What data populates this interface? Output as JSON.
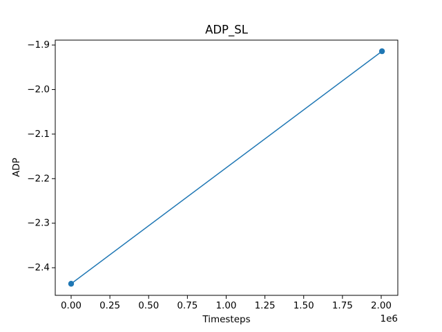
{
  "chart_data": {
    "type": "line",
    "title": "ADP_SL",
    "x_label": "Timesteps",
    "y_label": "ADP",
    "x_offset_label": "1e6",
    "x": [
      0,
      2005000
    ],
    "values": [
      -2.436,
      -1.914
    ],
    "color": "#1f77b4",
    "markers": true,
    "xlim": [
      -102400,
      2107000
    ],
    "ylim": [
      -2.462,
      -1.889
    ],
    "xticks": [
      {
        "value": 0,
        "label": "0.00"
      },
      {
        "value": 250000,
        "label": "0.25"
      },
      {
        "value": 500000,
        "label": "0.50"
      },
      {
        "value": 750000,
        "label": "0.75"
      },
      {
        "value": 1000000,
        "label": "1.00"
      },
      {
        "value": 1250000,
        "label": "1.25"
      },
      {
        "value": 1500000,
        "label": "1.50"
      },
      {
        "value": 1750000,
        "label": "1.75"
      },
      {
        "value": 2000000,
        "label": "2.00"
      }
    ],
    "yticks": [
      {
        "value": -2.4,
        "label": "−2.4"
      },
      {
        "value": -2.3,
        "label": "−2.3"
      },
      {
        "value": -2.2,
        "label": "−2.2"
      },
      {
        "value": -2.1,
        "label": "−2.1"
      },
      {
        "value": -2.0,
        "label": "−2.0"
      },
      {
        "value": -1.9,
        "label": "−1.9"
      }
    ],
    "grid": false
  }
}
